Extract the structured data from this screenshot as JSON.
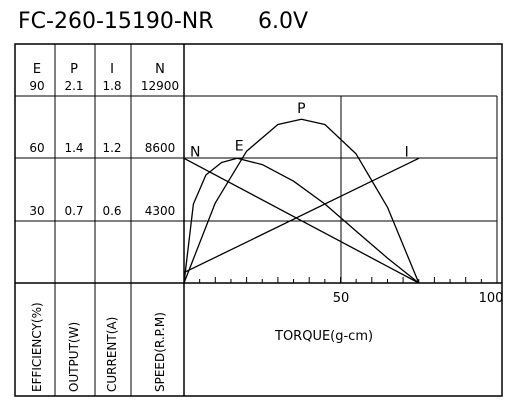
{
  "chart_data": {
    "type": "line",
    "title": "FC-260-15190-NR",
    "subtitle": "6.0V",
    "xlabel": "TORQUE(g-cm)",
    "x_ticks": [
      "50",
      "100"
    ],
    "xlim": [
      0,
      100
    ],
    "columns": [
      {
        "header": "E",
        "axis_label": "EFFICIENCY(%)",
        "ticks": [
          "30",
          "60",
          "90"
        ],
        "max": 90
      },
      {
        "header": "P",
        "axis_label": "OUTPUT(W)",
        "ticks": [
          "0.7",
          "1.4",
          "2.1"
        ],
        "max": 2.1
      },
      {
        "header": "I",
        "axis_label": "CURRENT(A)",
        "ticks": [
          "0.6",
          "1.2",
          "1.8"
        ],
        "max": 1.8
      },
      {
        "header": "N",
        "axis_label": "SPEED(R.P.M)",
        "ticks": [
          "4300",
          "8600",
          "12900"
        ],
        "max": 12900
      }
    ],
    "series": [
      {
        "name": "N",
        "x": [
          0,
          75
        ],
        "y": [
          8600,
          0
        ]
      },
      {
        "name": "I",
        "x": [
          0,
          75
        ],
        "y": [
          0.1,
          1.2
        ]
      },
      {
        "name": "P",
        "x": [
          0,
          10,
          20,
          30,
          37.5,
          45,
          55,
          65,
          75
        ],
        "y": [
          0,
          0.9,
          1.48,
          1.78,
          1.84,
          1.78,
          1.45,
          0.85,
          0
        ]
      },
      {
        "name": "E",
        "x": [
          0,
          3,
          7,
          12,
          17,
          25,
          35,
          45,
          55,
          65,
          75
        ],
        "y": [
          0,
          38,
          52,
          58,
          60,
          57,
          49,
          38,
          25,
          12,
          0
        ]
      }
    ],
    "grid": true
  }
}
